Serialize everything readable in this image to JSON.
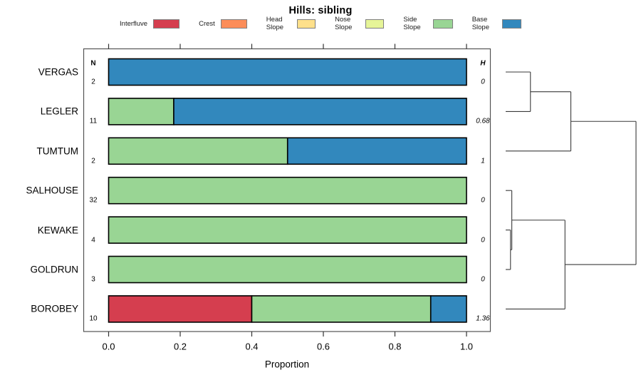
{
  "title": "Hills: sibling",
  "legend": {
    "items": [
      {
        "label": "Interfluve",
        "color": "#D53E4F"
      },
      {
        "label": "Crest",
        "color": "#FC8D59"
      },
      {
        "label": "Head Slope",
        "color": "#FEE08B"
      },
      {
        "label": "Nose Slope",
        "color": "#E6F598"
      },
      {
        "label": "Side Slope",
        "color": "#99D594"
      },
      {
        "label": "Base Slope",
        "color": "#3288BD"
      }
    ]
  },
  "columns": {
    "n_header": "N",
    "h_header": "H"
  },
  "axis": {
    "xlabel": "Proportion",
    "tick_values": [
      0.0,
      0.2,
      0.4,
      0.6,
      0.8,
      1.0
    ],
    "tick_labels": [
      "0.0",
      "0.2",
      "0.4",
      "0.6",
      "0.8",
      "1.0"
    ]
  },
  "chart_data": {
    "type": "bar",
    "orientation": "horizontal",
    "stacked": true,
    "title": "Hills: sibling",
    "xlabel": "Proportion",
    "xlim": [
      0,
      1
    ],
    "grid": false,
    "legend_position": "top",
    "categories": [
      "VERGAS",
      "LEGLER",
      "TUMTUM",
      "SALHOUSE",
      "KEWAKE",
      "GOLDRUN",
      "BOROBEY"
    ],
    "n_values": [
      "2",
      "11",
      "2",
      "32",
      "4",
      "3",
      "10"
    ],
    "h_values": [
      "0",
      "0.68",
      "1",
      "0",
      "0",
      "0",
      "1.36"
    ],
    "series": [
      {
        "name": "Interfluve",
        "color": "#D53E4F",
        "values": [
          0,
          0,
          0,
          0,
          0,
          0,
          0.4
        ]
      },
      {
        "name": "Crest",
        "color": "#FC8D59",
        "values": [
          0,
          0,
          0,
          0,
          0,
          0,
          0
        ]
      },
      {
        "name": "Head Slope",
        "color": "#FEE08B",
        "values": [
          0,
          0,
          0,
          0,
          0,
          0,
          0
        ]
      },
      {
        "name": "Nose Slope",
        "color": "#E6F598",
        "values": [
          0,
          0,
          0,
          0,
          0,
          0,
          0
        ]
      },
      {
        "name": "Side Slope",
        "color": "#99D594",
        "values": [
          0,
          0.182,
          0.5,
          1,
          1,
          1,
          0.5
        ]
      },
      {
        "name": "Base Slope",
        "color": "#3288BD",
        "values": [
          1,
          0.818,
          0.5,
          0,
          0,
          0,
          0.1
        ]
      }
    ]
  },
  "dendrogram": {
    "leaves": [
      "VERGAS",
      "LEGLER",
      "TUMTUM",
      "SALHOUSE",
      "KEWAKE",
      "GOLDRUN",
      "BOROBEY"
    ],
    "merges": [
      {
        "a": "L0",
        "b": "L1",
        "h": 0.19
      },
      {
        "a": "M0",
        "b": "L2",
        "h": 0.5
      },
      {
        "a": "L4",
        "b": "L5",
        "h": 0.037
      },
      {
        "a": "L3",
        "b": "M2",
        "h": 0.047
      },
      {
        "a": "M3",
        "b": "L6",
        "h": 0.455
      },
      {
        "a": "M1",
        "b": "M4",
        "h": 1.0
      }
    ]
  }
}
